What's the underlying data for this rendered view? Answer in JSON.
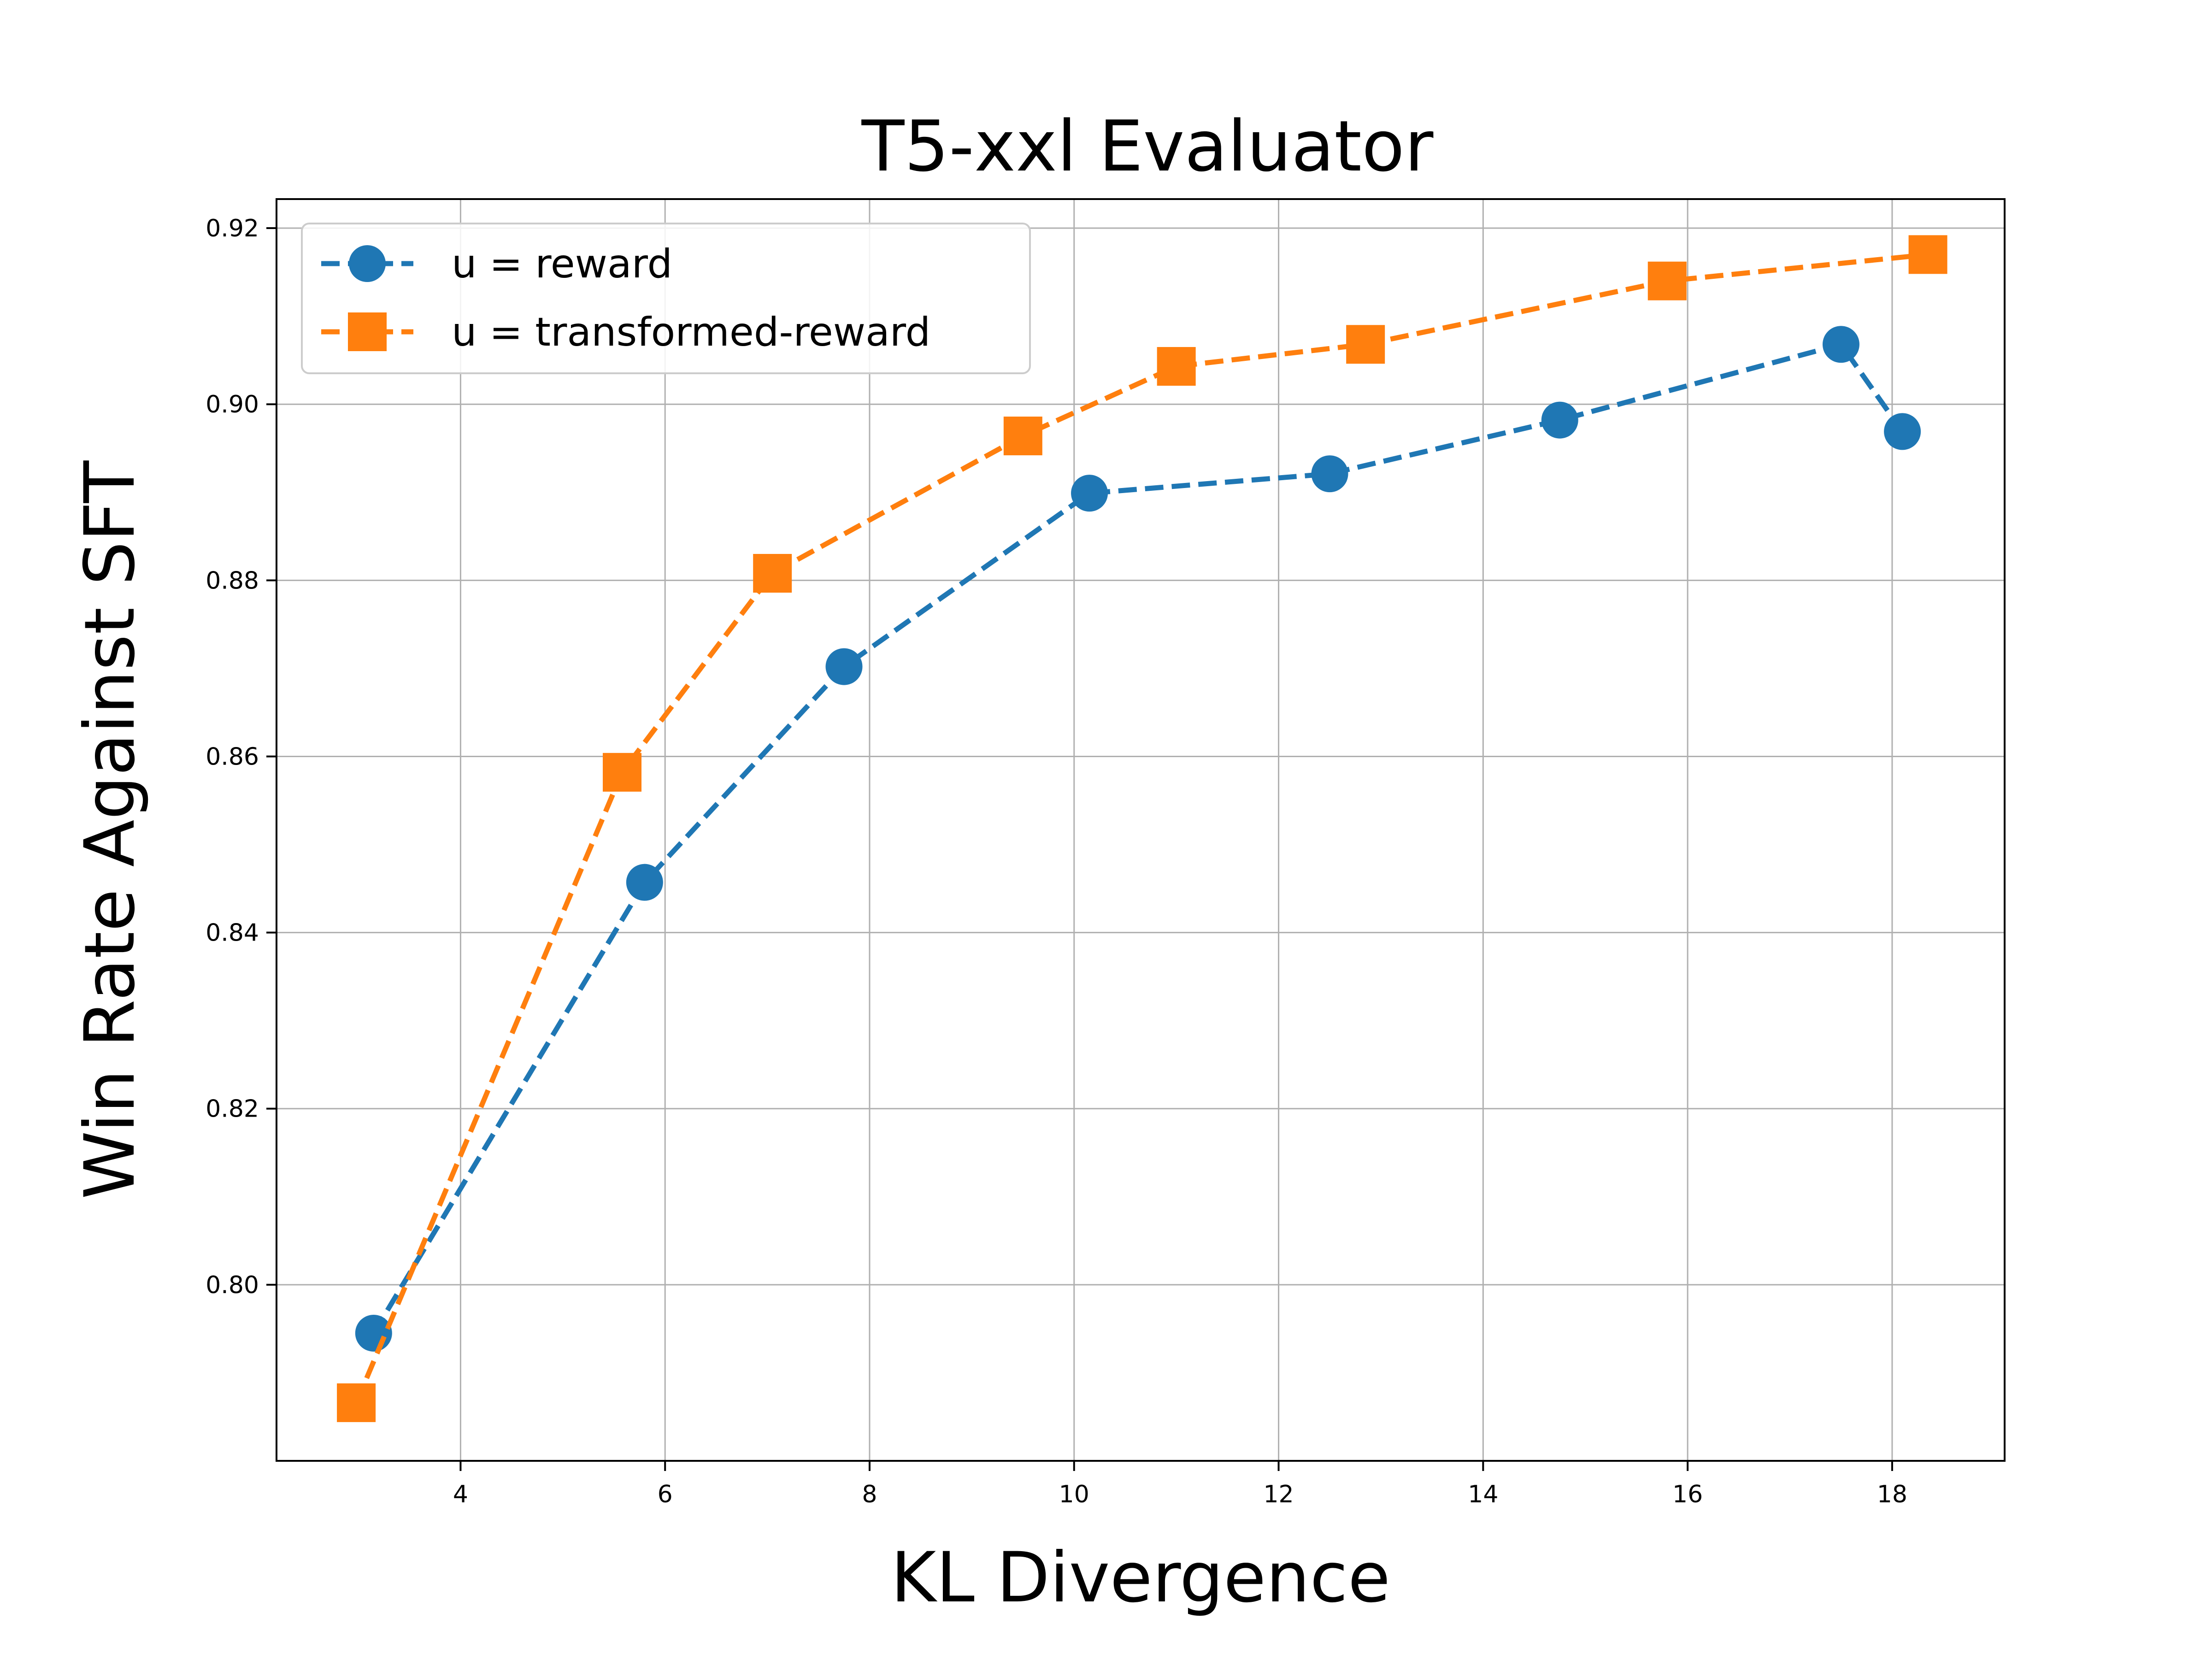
{
  "chart_data": {
    "type": "line",
    "title": "T5-xxl Evaluator",
    "xlabel": "KL Divergence",
    "ylabel": "Win Rate Against SFT",
    "xlim": [
      2.2,
      19.1
    ],
    "ylim": [
      0.78,
      0.9233
    ],
    "xticks": [
      4,
      6,
      8,
      10,
      12,
      14,
      16,
      18
    ],
    "yticks": [
      0.8,
      0.82,
      0.84,
      0.86,
      0.88,
      0.9,
      0.92
    ],
    "grid": true,
    "legend_position": "top-left",
    "series": [
      {
        "name": "u = reward",
        "color": "#1f77b4",
        "marker": "circle",
        "linestyle": "dashed",
        "x": [
          3.15,
          5.8,
          7.75,
          10.15,
          12.5,
          14.75,
          17.5,
          18.1
        ],
        "y": [
          0.7945,
          0.8457,
          0.8702,
          0.8899,
          0.8921,
          0.8982,
          0.9068,
          0.8969
        ]
      },
      {
        "name": "u = transformed-reward",
        "color": "#ff7f0e",
        "marker": "square",
        "linestyle": "dashed",
        "x": [
          2.98,
          5.58,
          7.05,
          9.5,
          11.0,
          12.85,
          15.8,
          18.35
        ],
        "y": [
          0.7866,
          0.8582,
          0.8808,
          0.8964,
          0.9043,
          0.9068,
          0.914,
          0.917
        ]
      }
    ]
  }
}
